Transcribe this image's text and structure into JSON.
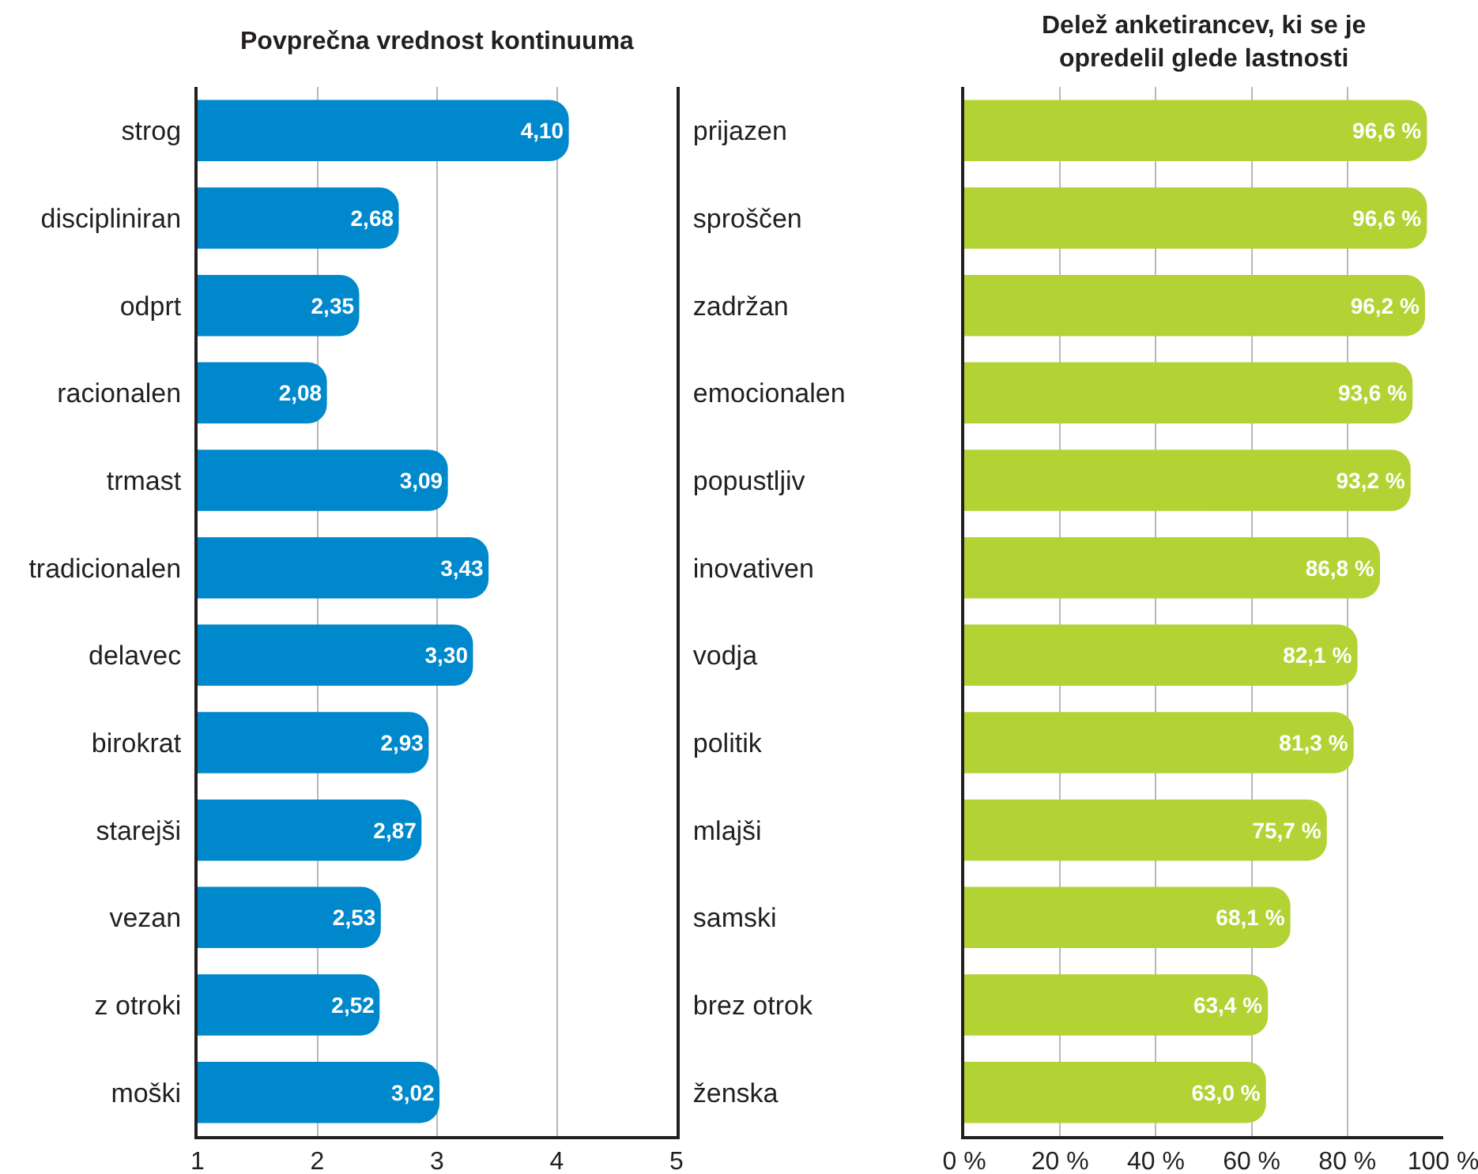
{
  "chart_data": [
    {
      "type": "bar",
      "orientation": "horizontal",
      "title": "Povprečna vrednost kontinuuma",
      "categories": [
        "strog",
        "discipliniran",
        "odprt",
        "racionalen",
        "trmast",
        "tradicionalen",
        "delavec",
        "birokrat",
        "starejši",
        "vezan",
        "z otroki",
        "moški"
      ],
      "y2_categories": [
        "prijazen",
        "sproščen",
        "zadržan",
        "emocionalen",
        "popustljiv",
        "inovativen",
        "vodja",
        "politik",
        "mlajši",
        "samski",
        "brez otrok",
        "ženska"
      ],
      "values": [
        4.1,
        2.68,
        2.35,
        2.08,
        3.09,
        3.43,
        3.3,
        2.93,
        2.87,
        2.53,
        2.52,
        3.02
      ],
      "value_labels": [
        "4,10",
        "2,68",
        "2,35",
        "2,08",
        "3,09",
        "3,43",
        "3,30",
        "2,93",
        "2,87",
        "2,53",
        "2,52",
        "3,02"
      ],
      "color": "#0088cc",
      "xlim": [
        1,
        5
      ],
      "xticks": [
        1,
        2,
        3,
        4,
        5
      ],
      "grid": "x"
    },
    {
      "type": "bar",
      "orientation": "horizontal",
      "title": "Delež anketirancev, ki se je opredelil glede lastnosti",
      "categories": [
        null,
        null,
        null,
        null,
        null,
        null,
        null,
        null,
        null,
        null,
        null,
        null
      ],
      "values": [
        96.6,
        96.6,
        96.2,
        93.6,
        93.2,
        86.8,
        82.1,
        81.3,
        75.7,
        68.1,
        63.4,
        63.0
      ],
      "value_labels": [
        "96,6 %",
        "96,6 %",
        "96,2 %",
        "93,6 %",
        "93,2 %",
        "86,8 %",
        "82,1 %",
        "81,3 %",
        "75,7 %",
        "68,1 %",
        "63,4 %",
        "63,0 %"
      ],
      "color": "#b3d334",
      "xlim": [
        0,
        100
      ],
      "xticks": [
        {
          "value": 0,
          "label": "0 %"
        },
        {
          "value": 20,
          "label": "20 %"
        },
        {
          "value": 40,
          "label": "40 %"
        },
        {
          "value": 60,
          "label": "60 %"
        },
        {
          "value": 80,
          "label": "80 %"
        },
        {
          "value": 100,
          "label": "100 %"
        }
      ],
      "grid": "x"
    }
  ]
}
